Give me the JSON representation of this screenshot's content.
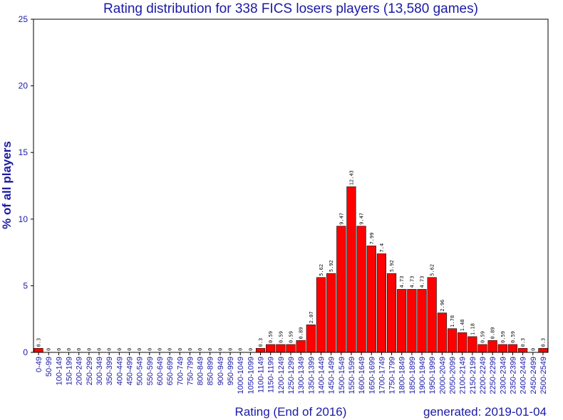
{
  "chart_data": {
    "type": "bar",
    "title": "Rating distribution for 338 FICS losers players (13,580 games)",
    "xlabel": "Rating (End of 2016)",
    "ylabel": "% of all players",
    "footer": "generated: 2019-01-04",
    "ylim": [
      0,
      25
    ],
    "yticks": [
      0,
      5,
      10,
      15,
      20,
      25
    ],
    "bar_color": "#ff0000",
    "text_color": "#1a1aa6",
    "categories": [
      "0-49",
      "50-99",
      "100-149",
      "150-199",
      "200-249",
      "250-299",
      "300-349",
      "350-399",
      "400-449",
      "450-499",
      "500-549",
      "550-599",
      "600-649",
      "650-699",
      "700-749",
      "750-799",
      "800-849",
      "850-899",
      "900-949",
      "950-999",
      "1000-1049",
      "1050-1099",
      "1100-1149",
      "1150-1199",
      "1200-1249",
      "1250-1299",
      "1300-1349",
      "1350-1399",
      "1400-1449",
      "1450-1499",
      "1500-1549",
      "1550-1599",
      "1600-1649",
      "1650-1699",
      "1700-1749",
      "1750-1799",
      "1800-1849",
      "1850-1899",
      "1900-1949",
      "1950-1999",
      "2000-2049",
      "2050-2099",
      "2100-2149",
      "2150-2199",
      "2200-2249",
      "2250-2299",
      "2300-2349",
      "2350-2399",
      "2400-2449",
      "2450-2499",
      "2500-2549"
    ],
    "values": [
      0.3,
      0,
      0,
      0,
      0,
      0,
      0,
      0,
      0,
      0,
      0,
      0,
      0,
      0,
      0,
      0,
      0,
      0,
      0,
      0,
      0,
      0,
      0.3,
      0.59,
      0.59,
      0.59,
      0.89,
      2.07,
      5.62,
      5.92,
      9.47,
      12.43,
      9.47,
      7.99,
      7.4,
      5.92,
      4.73,
      4.73,
      4.73,
      5.62,
      2.96,
      1.78,
      1.48,
      1.18,
      0.59,
      0.89,
      0.59,
      0.59,
      0.3,
      0,
      0.3
    ]
  }
}
